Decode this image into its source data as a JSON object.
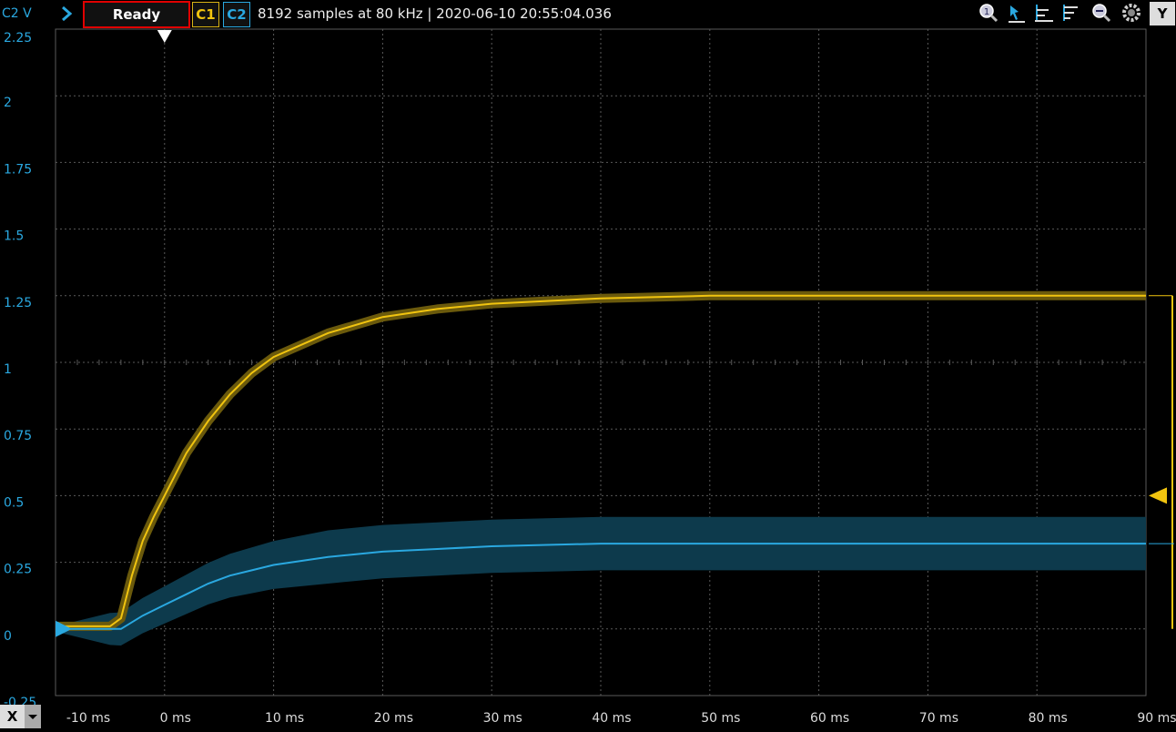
{
  "toolbar": {
    "y_axis_label": "C2 V",
    "status": "Ready",
    "ch1_label": "C1",
    "ch2_label": "C2",
    "info": "8192 samples at 80 kHz | 2020-06-10 20:55:04.036",
    "y_button": "Y",
    "x_button": "X",
    "icons": [
      "zoom-in-icon",
      "cursor-icon",
      "align-left-icon",
      "align-icon",
      "zoom-out-icon",
      "settings-gear-icon"
    ]
  },
  "colors": {
    "c1": "#f1c40f",
    "c2": "#2aa8e0",
    "c1_envelope": "#6b5a0c",
    "c2_envelope": "#0d3a4c",
    "grid": "#5a5a5a"
  },
  "chart_data": {
    "type": "line",
    "xlim": [
      -10,
      90
    ],
    "ylim": [
      -0.25,
      2.25
    ],
    "x_ticks": [
      -10,
      0,
      10,
      20,
      30,
      40,
      50,
      60,
      70,
      80,
      90
    ],
    "x_tick_labels": [
      "-10 ms",
      "0 ms",
      "10 ms",
      "20 ms",
      "30 ms",
      "40 ms",
      "50 ms",
      "60 ms",
      "70 ms",
      "80 ms",
      "90 ms"
    ],
    "y_ticks": [
      -0.25,
      0,
      0.25,
      0.5,
      0.75,
      1,
      1.25,
      1.5,
      1.75,
      2,
      2.25
    ],
    "y_tick_labels": [
      "-0.25",
      "0",
      "0.25",
      "0.5",
      "0.75",
      "1",
      "1.25",
      "1.5",
      "1.75",
      "2",
      "2.25"
    ],
    "series": [
      {
        "name": "C1",
        "x": [
          -10,
          -5,
          -4,
          -3,
          -2,
          -1,
          0,
          2,
          4,
          6,
          8,
          10,
          15,
          20,
          25,
          30,
          40,
          50,
          60,
          70,
          80,
          90
        ],
        "y": [
          0.01,
          0.01,
          0.04,
          0.2,
          0.33,
          0.42,
          0.5,
          0.66,
          0.78,
          0.88,
          0.96,
          1.02,
          1.11,
          1.17,
          1.2,
          1.22,
          1.24,
          1.25,
          1.25,
          1.25,
          1.25,
          1.25
        ]
      },
      {
        "name": "C2",
        "x": [
          -10,
          -5,
          -4,
          -2,
          0,
          2,
          4,
          6,
          8,
          10,
          15,
          20,
          25,
          30,
          40,
          50,
          60,
          70,
          80,
          90
        ],
        "y": [
          0.0,
          0.0,
          0.0,
          0.05,
          0.09,
          0.13,
          0.17,
          0.2,
          0.22,
          0.24,
          0.27,
          0.29,
          0.3,
          0.31,
          0.32,
          0.32,
          0.32,
          0.32,
          0.32,
          0.32
        ]
      }
    ],
    "trigger_time": 0,
    "trigger_level": 0.5
  }
}
